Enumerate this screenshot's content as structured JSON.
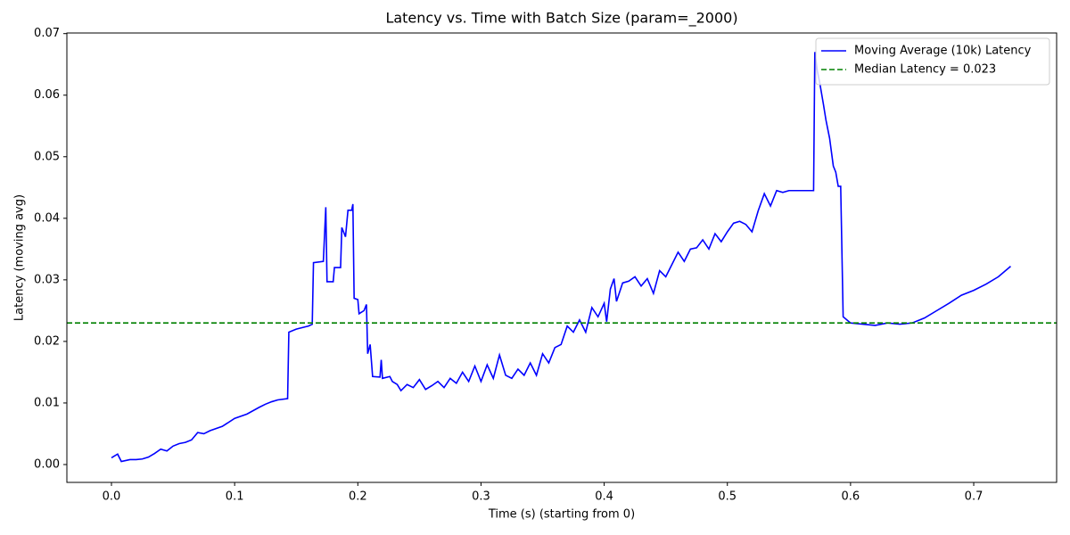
{
  "chart_data": {
    "type": "line",
    "title": "Latency vs. Time with Batch Size (param=_2000)",
    "x_label": "Time (s) (starting from 0)",
    "y_label": "Latency (moving avg)",
    "x": [
      0.0,
      0.005,
      0.008,
      0.015,
      0.02,
      0.025,
      0.03,
      0.035,
      0.04,
      0.045,
      0.05,
      0.055,
      0.06,
      0.065,
      0.07,
      0.075,
      0.08,
      0.09,
      0.1,
      0.11,
      0.12,
      0.125,
      0.13,
      0.135,
      0.143,
      0.144,
      0.15,
      0.16,
      0.163,
      0.164,
      0.172,
      0.174,
      0.175,
      0.18,
      0.181,
      0.186,
      0.187,
      0.19,
      0.192,
      0.195,
      0.196,
      0.197,
      0.2,
      0.201,
      0.205,
      0.207,
      0.208,
      0.21,
      0.212,
      0.218,
      0.219,
      0.22,
      0.226,
      0.228,
      0.232,
      0.235,
      0.24,
      0.245,
      0.25,
      0.255,
      0.26,
      0.265,
      0.27,
      0.275,
      0.28,
      0.285,
      0.29,
      0.295,
      0.3,
      0.305,
      0.31,
      0.315,
      0.32,
      0.325,
      0.33,
      0.335,
      0.34,
      0.345,
      0.35,
      0.355,
      0.36,
      0.365,
      0.37,
      0.375,
      0.38,
      0.385,
      0.39,
      0.395,
      0.4,
      0.402,
      0.405,
      0.408,
      0.41,
      0.415,
      0.42,
      0.425,
      0.43,
      0.435,
      0.44,
      0.445,
      0.45,
      0.455,
      0.46,
      0.465,
      0.47,
      0.475,
      0.48,
      0.485,
      0.49,
      0.495,
      0.5,
      0.505,
      0.51,
      0.515,
      0.52,
      0.525,
      0.53,
      0.535,
      0.54,
      0.545,
      0.55,
      0.57,
      0.571,
      0.573,
      0.575,
      0.578,
      0.58,
      0.583,
      0.586,
      0.588,
      0.59,
      0.592,
      0.594,
      0.6,
      0.61,
      0.62,
      0.63,
      0.64,
      0.65,
      0.66,
      0.67,
      0.68,
      0.69,
      0.7,
      0.71,
      0.72,
      0.73
    ],
    "series": [
      {
        "name": "Moving Average (10k) Latency",
        "color": "#0000ff",
        "values": [
          0.0011,
          0.0017,
          0.0005,
          0.0008,
          0.0008,
          0.0009,
          0.0012,
          0.0018,
          0.0025,
          0.0022,
          0.003,
          0.0034,
          0.0036,
          0.004,
          0.0052,
          0.005,
          0.0055,
          0.0062,
          0.0075,
          0.0082,
          0.0093,
          0.0098,
          0.0102,
          0.0105,
          0.0107,
          0.0215,
          0.022,
          0.0225,
          0.0228,
          0.0328,
          0.033,
          0.0418,
          0.0297,
          0.0297,
          0.032,
          0.032,
          0.0385,
          0.037,
          0.0413,
          0.0413,
          0.0423,
          0.027,
          0.0268,
          0.0245,
          0.025,
          0.026,
          0.018,
          0.0195,
          0.0143,
          0.0142,
          0.017,
          0.014,
          0.0143,
          0.0135,
          0.013,
          0.012,
          0.013,
          0.0125,
          0.0138,
          0.0122,
          0.0128,
          0.0135,
          0.0125,
          0.014,
          0.0132,
          0.015,
          0.0135,
          0.016,
          0.0135,
          0.0162,
          0.014,
          0.0178,
          0.0145,
          0.014,
          0.0155,
          0.0145,
          0.0165,
          0.0145,
          0.018,
          0.0165,
          0.019,
          0.0195,
          0.0225,
          0.0215,
          0.0235,
          0.0215,
          0.0255,
          0.024,
          0.0262,
          0.0232,
          0.0285,
          0.0302,
          0.0265,
          0.0295,
          0.0298,
          0.0305,
          0.029,
          0.0302,
          0.0278,
          0.0315,
          0.0305,
          0.0325,
          0.0345,
          0.033,
          0.035,
          0.0352,
          0.0365,
          0.035,
          0.0375,
          0.0362,
          0.0378,
          0.0392,
          0.0395,
          0.039,
          0.0378,
          0.0412,
          0.044,
          0.042,
          0.0445,
          0.0442,
          0.0445,
          0.0445,
          0.067,
          0.064,
          0.062,
          0.0585,
          0.056,
          0.053,
          0.0485,
          0.0475,
          0.0452,
          0.0452,
          0.024,
          0.023,
          0.0228,
          0.0226,
          0.023,
          0.0228,
          0.023,
          0.0238,
          0.025,
          0.0262,
          0.0275,
          0.0283,
          0.0293,
          0.0305,
          0.0322
        ]
      }
    ],
    "reference_lines": [
      {
        "name": "Median Latency = 0.023",
        "value": 0.023,
        "color": "#008000",
        "dashed": true
      }
    ],
    "xlim": [
      -0.0362,
      0.7673
    ],
    "ylim": [
      -0.0029,
      0.0701
    ],
    "xticks": [
      {
        "value": 0,
        "label": "0.0"
      },
      0.1,
      0.2,
      0.3,
      0.4,
      0.5,
      0.6,
      0.7
    ],
    "yticks": [
      {
        "value": 0,
        "label": "0.00"
      },
      0.01,
      0.02,
      0.03,
      0.04,
      0.05,
      0.06,
      0.07
    ],
    "legend": "upper right",
    "grid": false
  }
}
